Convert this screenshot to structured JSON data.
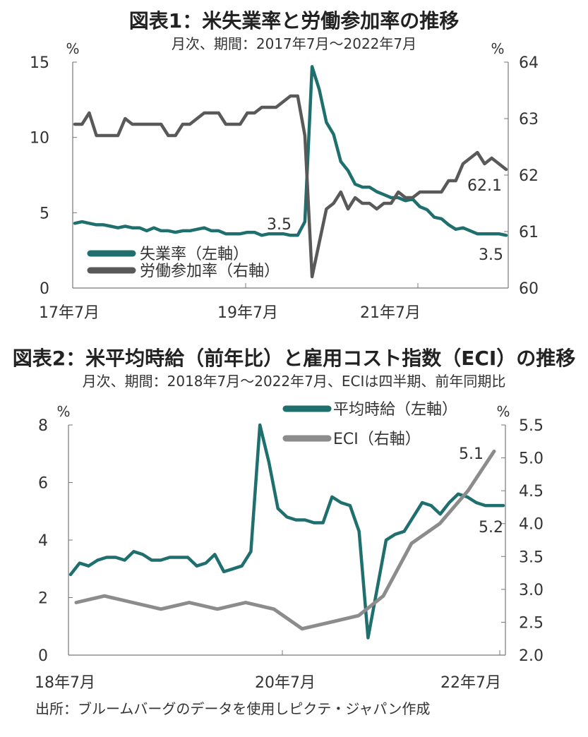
{
  "chart_data": [
    {
      "type": "line",
      "title": "図表1：米失業率と労働参加率の推移",
      "subtitle": "月次、期間：2017年7月～2022年7月",
      "left_unit": "%",
      "right_unit": "%",
      "y_left": {
        "min": 0,
        "max": 15,
        "ticks": [
          "0",
          "5",
          "10",
          "15"
        ]
      },
      "y_right": {
        "min": 60,
        "max": 64,
        "ticks": [
          "60",
          "61",
          "62",
          "63",
          "64"
        ]
      },
      "x_labels": [
        "17年7月",
        "19年7月",
        "21年7月"
      ],
      "grid": false,
      "series": [
        {
          "name": "失業率（左軸）",
          "axis": "left",
          "color": "#1e6f6d",
          "values": [
            4.3,
            4.4,
            4.3,
            4.2,
            4.2,
            4.1,
            4.0,
            4.1,
            4.0,
            4.0,
            3.8,
            4.0,
            3.8,
            3.8,
            3.7,
            3.8,
            3.8,
            3.9,
            4.0,
            3.8,
            3.8,
            3.6,
            3.6,
            3.6,
            3.7,
            3.7,
            3.5,
            3.6,
            3.6,
            3.6,
            3.5,
            3.5,
            4.4,
            14.7,
            13.2,
            11.0,
            10.2,
            8.4,
            7.8,
            6.9,
            6.7,
            6.7,
            6.4,
            6.2,
            6.0,
            6.0,
            5.8,
            5.9,
            5.4,
            5.2,
            4.7,
            4.6,
            4.2,
            3.9,
            4.0,
            3.8,
            3.6,
            3.6,
            3.6,
            3.6,
            3.5
          ]
        },
        {
          "name": "労働参加率（右軸）",
          "axis": "right",
          "color": "#595959",
          "values": [
            62.9,
            62.9,
            63.1,
            62.7,
            62.7,
            62.7,
            62.7,
            63.0,
            62.9,
            62.9,
            62.9,
            62.9,
            62.9,
            62.7,
            62.7,
            62.9,
            62.9,
            63.0,
            63.1,
            63.1,
            63.1,
            62.9,
            62.9,
            62.9,
            63.1,
            63.1,
            63.2,
            63.2,
            63.2,
            63.3,
            63.4,
            63.4,
            62.7,
            60.2,
            60.8,
            61.4,
            61.5,
            61.7,
            61.4,
            61.6,
            61.5,
            61.5,
            61.4,
            61.5,
            61.5,
            61.7,
            61.6,
            61.6,
            61.7,
            61.7,
            61.7,
            61.7,
            61.9,
            61.9,
            62.2,
            62.3,
            62.4,
            62.2,
            62.3,
            62.2,
            62.1
          ]
        }
      ],
      "annotations": [
        "3.5",
        "3.5",
        "62.1"
      ]
    },
    {
      "type": "line",
      "title": "図表2：米平均時給（前年比）と雇用コスト指数（ECI）の推移",
      "subtitle": "月次、期間：2018年7月～2022年7月、ECIは四半期、前年同期比",
      "left_unit": "%",
      "right_unit": "%",
      "y_left": {
        "min": 0,
        "max": 8,
        "ticks": [
          "0",
          "2",
          "4",
          "6",
          "8"
        ]
      },
      "y_right": {
        "min": 2.0,
        "max": 5.5,
        "ticks": [
          "2.0",
          "2.5",
          "3.0",
          "3.5",
          "4.0",
          "4.5",
          "5.0",
          "5.5"
        ]
      },
      "x_labels": [
        "18年7月",
        "20年7月",
        "22年7月"
      ],
      "grid": false,
      "series": [
        {
          "name": "平均時給（左軸）",
          "axis": "left",
          "color": "#1e6f6d",
          "values": [
            2.8,
            3.2,
            3.1,
            3.3,
            3.4,
            3.4,
            3.3,
            3.6,
            3.5,
            3.3,
            3.3,
            3.4,
            3.4,
            3.4,
            3.1,
            3.2,
            3.5,
            2.9,
            3.0,
            3.1,
            3.6,
            8.0,
            6.7,
            5.1,
            4.8,
            4.7,
            4.7,
            4.6,
            4.6,
            5.5,
            5.3,
            5.2,
            4.3,
            0.6,
            2.3,
            4.0,
            4.2,
            4.3,
            4.8,
            5.3,
            5.2,
            4.9,
            5.3,
            5.6,
            5.5,
            5.3,
            5.2,
            5.2,
            5.2
          ]
        },
        {
          "name": "ECI（右軸）",
          "axis": "right",
          "color": "#8c8c8c",
          "values": [
            2.8,
            2.9,
            2.8,
            2.7,
            2.8,
            2.7,
            2.8,
            2.7,
            2.4,
            2.5,
            2.6,
            2.9,
            3.7,
            4.0,
            4.5,
            5.1
          ]
        }
      ],
      "annotations": [
        "5.1",
        "5.2"
      ]
    }
  ],
  "source": "出所：ブルームバーグのデータを使用しピクテ・ジャパン作成"
}
